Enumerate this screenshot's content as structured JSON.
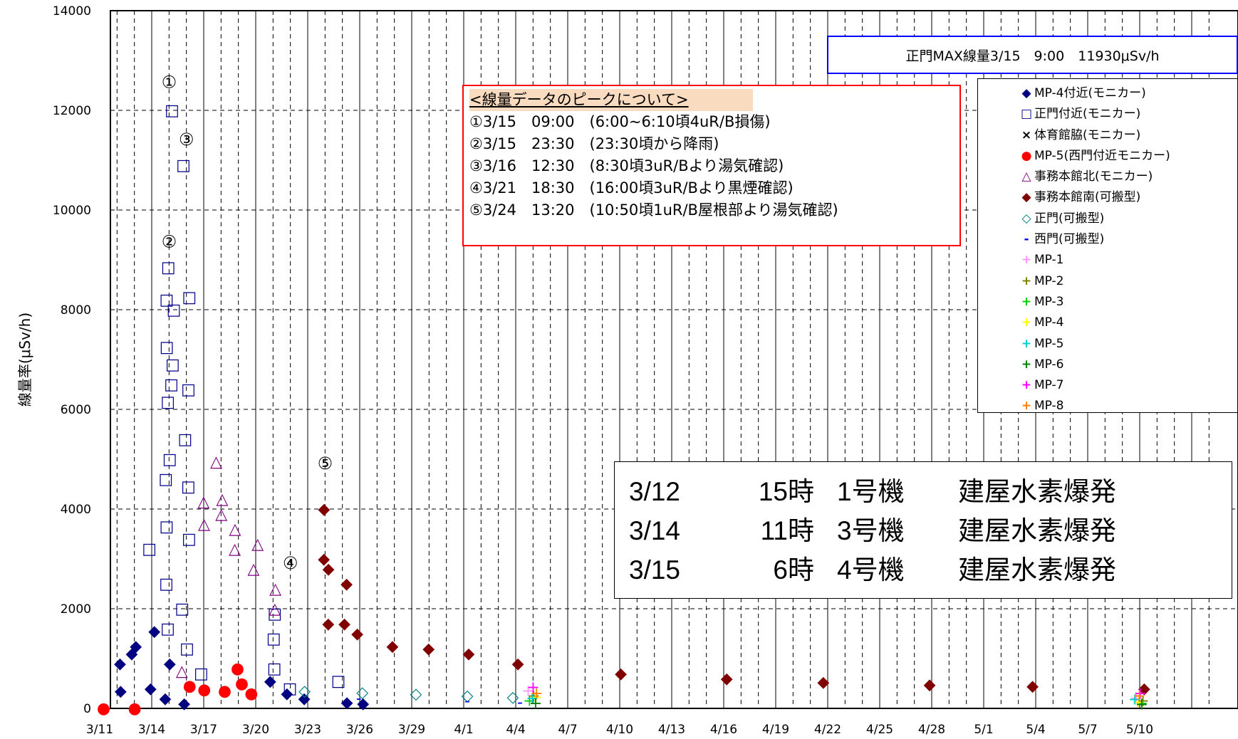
{
  "chart_data": {
    "type": "scatter",
    "title": "",
    "xlabel": "",
    "ylabel": "線量率(μSv/h)",
    "ylim": [
      0,
      14000
    ],
    "y_ticks": [
      0,
      2000,
      4000,
      6000,
      8000,
      10000,
      12000,
      14000
    ],
    "x_tick_labels": [
      "3/11",
      "3/14",
      "3/17",
      "3/20",
      "3/23",
      "3/26",
      "3/29",
      "4/1",
      "4/4",
      "4/7",
      "4/10",
      "4/13",
      "4/16",
      "4/19",
      "4/22",
      "4/25",
      "4/28",
      "5/1",
      "5/4",
      "5/7",
      "5/10"
    ],
    "grid": true,
    "legend_position": "right",
    "series": [
      {
        "name": "MP-4付近(モニカー)",
        "marker": "◆",
        "color": "#000080",
        "points": [
          [
            "3/11",
            0
          ],
          [
            "3/12",
            350
          ],
          [
            "3/12",
            900
          ],
          [
            "3/13",
            1100
          ],
          [
            "3/13",
            1250
          ],
          [
            "3/14",
            1550
          ],
          [
            "3/14",
            400
          ],
          [
            "3/15",
            200
          ],
          [
            "3/15",
            900
          ],
          [
            "3/16",
            100
          ],
          [
            "3/21",
            550
          ],
          [
            "3/22",
            300
          ],
          [
            "3/23",
            200
          ],
          [
            "3/25",
            120
          ],
          [
            "3/26",
            100
          ]
        ]
      },
      {
        "name": "正門付近(モニカー)",
        "marker": "□",
        "color": "#00008b",
        "points": [
          [
            "3/15",
            12000
          ],
          [
            "3/16",
            10900
          ],
          [
            "3/15",
            8850
          ],
          [
            "3/15",
            8200
          ],
          [
            "3/15",
            8000
          ],
          [
            "3/16",
            8250
          ],
          [
            "3/15",
            7250
          ],
          [
            "3/15",
            6900
          ],
          [
            "3/15",
            6500
          ],
          [
            "3/16",
            6400
          ],
          [
            "3/15",
            6150
          ],
          [
            "3/16",
            5400
          ],
          [
            "3/15",
            5000
          ],
          [
            "3/15",
            4600
          ],
          [
            "3/16",
            4450
          ],
          [
            "3/15",
            3650
          ],
          [
            "3/16",
            3400
          ],
          [
            "3/14",
            3200
          ],
          [
            "3/15",
            2500
          ],
          [
            "3/16",
            2000
          ],
          [
            "3/15",
            1600
          ],
          [
            "3/16",
            1200
          ],
          [
            "3/17",
            700
          ],
          [
            "3/21",
            1900
          ],
          [
            "3/21",
            1400
          ],
          [
            "3/21",
            800
          ],
          [
            "3/22",
            400
          ],
          [
            "3/25",
            550
          ]
        ]
      },
      {
        "name": "体育館脇(モニカー)",
        "marker": "×",
        "color": "#000000",
        "points": []
      },
      {
        "name": "MP-5(西門付近モニカー)",
        "marker": "●",
        "color": "#ff0000",
        "points": [
          [
            "3/11",
            0
          ],
          [
            "3/13",
            0
          ],
          [
            "3/16",
            450
          ],
          [
            "3/17",
            380
          ],
          [
            "3/18",
            350
          ],
          [
            "3/19",
            500
          ],
          [
            "3/19",
            800
          ],
          [
            "3/20",
            300
          ]
        ]
      },
      {
        "name": "事務本館北(モニカー)",
        "marker": "△",
        "color": "#800080",
        "points": [
          [
            "3/16",
            750
          ],
          [
            "3/17",
            4150
          ],
          [
            "3/17",
            3700
          ],
          [
            "3/18",
            4950
          ],
          [
            "3/18",
            4200
          ],
          [
            "3/18",
            3900
          ],
          [
            "3/19",
            3600
          ],
          [
            "3/19",
            3200
          ],
          [
            "3/20",
            2800
          ],
          [
            "3/20",
            3300
          ],
          [
            "3/21",
            2400
          ],
          [
            "3/21",
            2000
          ]
        ]
      },
      {
        "name": "事務本館南(可搬型)",
        "marker": "◆",
        "color": "#800000",
        "points": [
          [
            "3/24",
            4000
          ],
          [
            "3/24",
            3000
          ],
          [
            "3/24",
            2800
          ],
          [
            "3/24",
            1700
          ],
          [
            "3/25",
            2500
          ],
          [
            "3/25",
            1700
          ],
          [
            "3/26",
            1500
          ],
          [
            "3/28",
            1250
          ],
          [
            "3/30",
            1200
          ],
          [
            "4/1",
            1100
          ],
          [
            "4/4",
            900
          ],
          [
            "4/10",
            700
          ],
          [
            "4/16",
            600
          ],
          [
            "4/22",
            530
          ],
          [
            "4/28",
            480
          ],
          [
            "5/4",
            450
          ],
          [
            "5/10",
            400
          ]
        ]
      },
      {
        "name": "正門(可搬型)",
        "marker": "◇",
        "color": "#008080",
        "points": [
          [
            "3/23",
            350
          ],
          [
            "3/26",
            320
          ],
          [
            "3/29",
            290
          ],
          [
            "4/1",
            260
          ],
          [
            "4/4",
            230
          ]
        ]
      },
      {
        "name": "西門(可搬型)",
        "marker": "-",
        "color": "#0000ff",
        "points": [
          [
            "3/26",
            200
          ],
          [
            "4/1",
            150
          ],
          [
            "4/4",
            120
          ]
        ]
      },
      {
        "name": "MP-1",
        "marker": "+",
        "color": "#ff99ff",
        "points": [
          [
            "4/5",
            350
          ],
          [
            "5/10",
            200
          ]
        ]
      },
      {
        "name": "MP-2",
        "marker": "+",
        "color": "#808000",
        "points": [
          [
            "4/5",
            250
          ],
          [
            "5/10",
            150
          ]
        ]
      },
      {
        "name": "MP-3",
        "marker": "+",
        "color": "#00cc00",
        "points": [
          [
            "4/5",
            150
          ],
          [
            "5/10",
            100
          ]
        ]
      },
      {
        "name": "MP-4",
        "marker": "+",
        "color": "#ffff00",
        "points": [
          [
            "4/5",
            220
          ],
          [
            "5/10",
            120
          ]
        ]
      },
      {
        "name": "MP-5",
        "marker": "+",
        "color": "#00cccc",
        "points": [
          [
            "4/5",
            200
          ],
          [
            "5/10",
            180
          ]
        ]
      },
      {
        "name": "MP-6",
        "marker": "+",
        "color": "#008000",
        "points": [
          [
            "4/5",
            100
          ],
          [
            "5/10",
            80
          ]
        ]
      },
      {
        "name": "MP-7",
        "marker": "+",
        "color": "#ff00ff",
        "points": [
          [
            "4/5",
            420
          ],
          [
            "5/10",
            300
          ]
        ]
      },
      {
        "name": "MP-8",
        "marker": "+",
        "color": "#ff8000",
        "points": [
          [
            "4/5",
            300
          ],
          [
            "5/10",
            250
          ]
        ]
      }
    ],
    "peak_markers": [
      {
        "label": "①",
        "x": "3/15",
        "y": 12450
      },
      {
        "label": "②",
        "x": "3/15",
        "y": 9250
      },
      {
        "label": "③",
        "x": "3/16",
        "y": 11300
      },
      {
        "label": "④",
        "x": "3/22",
        "y": 2800
      },
      {
        "label": "⑤",
        "x": "3/24",
        "y": 4800
      }
    ]
  },
  "max_box": {
    "text": "正門MAX線量3/15　9:00　11930μSv/h"
  },
  "peak_box": {
    "heading": "<線量データのピークについて>",
    "lines": [
      "①3/15　09:00　(6:00~6:10頃4uR/B損傷)",
      "②3/15　23:30　(23:30頃から降雨)",
      "③3/16　12:30　(8:30頃3uR/Bより湯気確認)",
      "④3/21　18:30　(16:00頃3uR/Bより黒煙確認)",
      "⑤3/24　13:20　(10:50頃1uR/B屋根部より湯気確認)"
    ]
  },
  "events": [
    {
      "date": "3/12",
      "time": "15時",
      "unit": "1号機",
      "desc": "建屋水素爆発"
    },
    {
      "date": "3/14",
      "time": "11時",
      "unit": "3号機",
      "desc": "建屋水素爆発"
    },
    {
      "date": "3/15",
      "time": "6時",
      "unit": "4号機",
      "desc": "建屋水素爆発"
    }
  ]
}
